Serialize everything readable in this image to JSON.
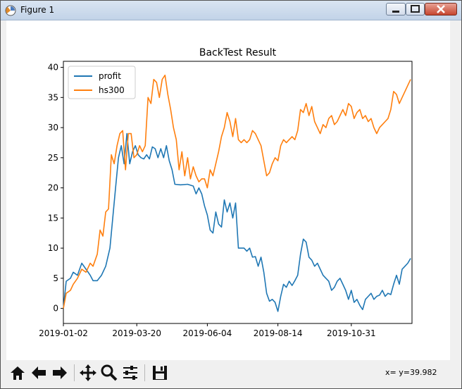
{
  "window": {
    "title": "Figure 1"
  },
  "toolbar": {
    "buttons": [
      "home-icon",
      "back-arrow-icon",
      "forward-arrow-icon",
      "pan-icon",
      "zoom-icon",
      "configure-subplots-icon",
      "save-icon"
    ],
    "coords_text": "x= y=39.982"
  },
  "chart_data": {
    "type": "line",
    "title": "BackTest Result",
    "xlabel": "",
    "ylabel": "",
    "x_tick_labels": [
      "2019-01-02",
      "2019-03-20",
      "2019-06-04",
      "2019-08-14",
      "2019-10-31"
    ],
    "x_tick_positions": [
      0,
      52,
      102,
      152,
      204
    ],
    "y_ticks": [
      0,
      5,
      10,
      15,
      20,
      25,
      30,
      35,
      40
    ],
    "xlim": [
      0,
      247
    ],
    "ylim": [
      -2.5,
      41
    ],
    "grid": false,
    "legend_position": "top-left",
    "series": [
      {
        "name": "profit",
        "color": "#1f77b4",
        "points": [
          [
            0,
            0
          ],
          [
            2,
            4.5
          ],
          [
            5,
            5
          ],
          [
            7,
            6
          ],
          [
            10,
            5.5
          ],
          [
            13,
            7.5
          ],
          [
            16,
            6.5
          ],
          [
            19,
            5.5
          ],
          [
            21,
            4.6
          ],
          [
            24,
            4.6
          ],
          [
            27,
            5.5
          ],
          [
            30,
            7
          ],
          [
            33,
            10
          ],
          [
            35,
            15
          ],
          [
            37,
            20
          ],
          [
            39,
            25
          ],
          [
            41,
            27
          ],
          [
            43,
            24
          ],
          [
            45,
            29
          ],
          [
            47,
            24
          ],
          [
            49,
            26
          ],
          [
            51,
            27
          ],
          [
            53,
            25.5
          ],
          [
            55,
            25
          ],
          [
            57,
            24.8
          ],
          [
            59,
            25.5
          ],
          [
            61,
            24.8
          ],
          [
            63,
            26.8
          ],
          [
            65,
            26.5
          ],
          [
            67,
            25
          ],
          [
            69,
            26.5
          ],
          [
            71,
            25
          ],
          [
            73,
            27
          ],
          [
            75,
            24.5
          ],
          [
            77,
            23
          ],
          [
            79,
            20.6
          ],
          [
            83,
            20.5
          ],
          [
            88,
            20.6
          ],
          [
            92,
            20.3
          ],
          [
            94,
            19
          ],
          [
            96,
            20
          ],
          [
            98,
            19
          ],
          [
            100,
            17
          ],
          [
            102,
            15.5
          ],
          [
            104,
            13
          ],
          [
            106,
            12.5
          ],
          [
            108,
            16
          ],
          [
            110,
            14
          ],
          [
            112,
            13.5
          ],
          [
            114,
            18
          ],
          [
            116,
            16
          ],
          [
            118,
            17.5
          ],
          [
            120,
            15
          ],
          [
            122,
            17.5
          ],
          [
            124,
            10
          ],
          [
            126,
            10
          ],
          [
            128,
            10
          ],
          [
            130,
            9.5
          ],
          [
            132,
            10
          ],
          [
            134,
            8.5
          ],
          [
            136,
            8.6
          ],
          [
            138,
            7
          ],
          [
            140,
            8.5
          ],
          [
            142,
            6
          ],
          [
            144,
            2.5
          ],
          [
            146,
            1.2
          ],
          [
            148,
            1.5
          ],
          [
            150,
            1
          ],
          [
            152,
            -0.5
          ],
          [
            154,
            2
          ],
          [
            156,
            4
          ],
          [
            158,
            3.5
          ],
          [
            160,
            4.5
          ],
          [
            162,
            3.8
          ],
          [
            164,
            4.6
          ],
          [
            166,
            5.5
          ],
          [
            168,
            9
          ],
          [
            170,
            11.5
          ],
          [
            172,
            11
          ],
          [
            174,
            8.5
          ],
          [
            176,
            8
          ],
          [
            178,
            7
          ],
          [
            180,
            7.5
          ],
          [
            182,
            6.5
          ],
          [
            184,
            5.5
          ],
          [
            186,
            5
          ],
          [
            188,
            4.5
          ],
          [
            190,
            3
          ],
          [
            192,
            3.5
          ],
          [
            194,
            4.5
          ],
          [
            196,
            5
          ],
          [
            198,
            4
          ],
          [
            200,
            3
          ],
          [
            202,
            1.5
          ],
          [
            204,
            3
          ],
          [
            206,
            1
          ],
          [
            208,
            1.5
          ],
          [
            210,
            0.5
          ],
          [
            212,
            -0.2
          ],
          [
            214,
            1.5
          ],
          [
            216,
            2
          ],
          [
            218,
            2.5
          ],
          [
            220,
            1.5
          ],
          [
            222,
            2
          ],
          [
            224,
            2.2
          ],
          [
            226,
            3
          ],
          [
            228,
            2
          ],
          [
            230,
            2.5
          ],
          [
            232,
            2.3
          ],
          [
            234,
            4
          ],
          [
            236,
            5.5
          ],
          [
            238,
            4
          ],
          [
            240,
            6.5
          ],
          [
            242,
            7
          ],
          [
            244,
            7.5
          ],
          [
            246,
            8.3
          ]
        ]
      },
      {
        "name": "hs300",
        "color": "#ff7f0e",
        "points": [
          [
            0,
            0
          ],
          [
            2,
            2.5
          ],
          [
            5,
            3
          ],
          [
            7,
            4
          ],
          [
            10,
            5
          ],
          [
            13,
            6.5
          ],
          [
            16,
            6
          ],
          [
            19,
            7.5
          ],
          [
            21,
            7
          ],
          [
            24,
            9
          ],
          [
            26,
            13
          ],
          [
            28,
            12
          ],
          [
            30,
            16
          ],
          [
            32,
            16.5
          ],
          [
            34,
            25.5
          ],
          [
            36,
            24
          ],
          [
            38,
            27
          ],
          [
            40,
            29
          ],
          [
            42,
            29.5
          ],
          [
            44,
            23
          ],
          [
            46,
            29
          ],
          [
            48,
            29
          ],
          [
            50,
            25
          ],
          [
            52,
            25.5
          ],
          [
            54,
            27
          ],
          [
            56,
            26
          ],
          [
            58,
            27
          ],
          [
            60,
            35
          ],
          [
            62,
            34
          ],
          [
            64,
            38
          ],
          [
            66,
            37.5
          ],
          [
            68,
            35
          ],
          [
            70,
            38
          ],
          [
            72,
            38.7
          ],
          [
            74,
            35.5
          ],
          [
            76,
            33
          ],
          [
            78,
            30
          ],
          [
            80,
            28
          ],
          [
            82,
            23
          ],
          [
            84,
            26
          ],
          [
            86,
            22
          ],
          [
            88,
            25
          ],
          [
            90,
            21.5
          ],
          [
            92,
            23.5
          ],
          [
            94,
            22
          ],
          [
            96,
            21
          ],
          [
            98,
            21.5
          ],
          [
            100,
            21.5
          ],
          [
            102,
            20
          ],
          [
            104,
            23
          ],
          [
            106,
            22
          ],
          [
            108,
            24
          ],
          [
            110,
            26
          ],
          [
            112,
            28.5
          ],
          [
            114,
            30
          ],
          [
            116,
            32.5
          ],
          [
            118,
            31
          ],
          [
            120,
            28.5
          ],
          [
            122,
            31.5
          ],
          [
            124,
            28
          ],
          [
            126,
            27.5
          ],
          [
            128,
            28
          ],
          [
            130,
            27.5
          ],
          [
            132,
            28
          ],
          [
            134,
            29.5
          ],
          [
            136,
            29
          ],
          [
            138,
            28
          ],
          [
            140,
            27
          ],
          [
            142,
            24.5
          ],
          [
            144,
            22
          ],
          [
            146,
            22.5
          ],
          [
            148,
            24
          ],
          [
            150,
            25
          ],
          [
            152,
            24.5
          ],
          [
            154,
            27
          ],
          [
            156,
            28
          ],
          [
            158,
            27.5
          ],
          [
            160,
            28
          ],
          [
            162,
            28.5
          ],
          [
            164,
            28
          ],
          [
            166,
            29.5
          ],
          [
            168,
            33
          ],
          [
            170,
            32.5
          ],
          [
            172,
            34
          ],
          [
            174,
            32
          ],
          [
            176,
            33.5
          ],
          [
            178,
            31
          ],
          [
            180,
            30
          ],
          [
            182,
            29
          ],
          [
            184,
            30.5
          ],
          [
            186,
            30
          ],
          [
            188,
            31.5
          ],
          [
            190,
            32
          ],
          [
            192,
            30.5
          ],
          [
            194,
            31
          ],
          [
            196,
            32
          ],
          [
            198,
            33
          ],
          [
            200,
            32
          ],
          [
            202,
            34
          ],
          [
            204,
            33.5
          ],
          [
            206,
            31.5
          ],
          [
            208,
            32.5
          ],
          [
            210,
            33
          ],
          [
            212,
            31.5
          ],
          [
            214,
            32
          ],
          [
            216,
            31
          ],
          [
            218,
            31.5
          ],
          [
            220,
            30
          ],
          [
            222,
            29
          ],
          [
            224,
            30
          ],
          [
            226,
            30.5
          ],
          [
            228,
            31
          ],
          [
            230,
            31.5
          ],
          [
            232,
            33
          ],
          [
            234,
            36
          ],
          [
            236,
            35.5
          ],
          [
            238,
            34
          ],
          [
            240,
            35
          ],
          [
            242,
            36
          ],
          [
            244,
            37
          ],
          [
            246,
            38
          ]
        ]
      }
    ]
  }
}
